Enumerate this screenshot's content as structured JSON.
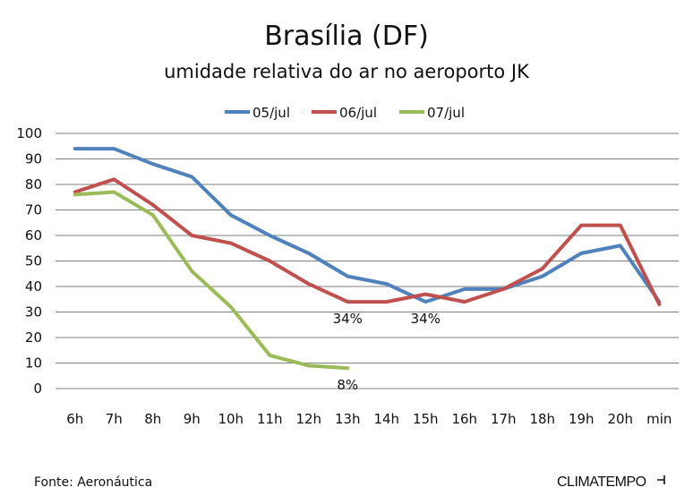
{
  "chart_data": {
    "type": "line",
    "title": "Brasília (DF)",
    "subtitle": "umidade relativa do ar no aeroporto JK",
    "categories": [
      "6h",
      "7h",
      "8h",
      "9h",
      "10h",
      "11h",
      "12h",
      "13h",
      "14h",
      "15h",
      "16h",
      "17h",
      "18h",
      "19h",
      "20h",
      "min"
    ],
    "y_ticks": [
      "0",
      "10",
      "20",
      "30",
      "40",
      "50",
      "60",
      "70",
      "80",
      "90",
      "100"
    ],
    "ylim": [
      0,
      100
    ],
    "grid": true,
    "legend_position": "top",
    "series": [
      {
        "name": "05/jul",
        "color": "#4f81bd",
        "values": [
          94,
          94,
          88,
          83,
          68,
          60,
          53,
          44,
          41,
          34,
          39,
          39,
          44,
          53,
          56,
          34
        ]
      },
      {
        "name": "06/jul",
        "color": "#c0504d",
        "values": [
          77,
          82,
          72,
          60,
          57,
          50,
          41,
          34,
          34,
          37,
          34,
          39,
          47,
          64,
          64,
          33
        ]
      },
      {
        "name": "07/jul",
        "color": "#9bbb59",
        "values": [
          76,
          77,
          68,
          46,
          32,
          13,
          9,
          8,
          null,
          null,
          null,
          null,
          null,
          null,
          null,
          null
        ]
      }
    ],
    "annotations": [
      {
        "text": "34%",
        "series": 1,
        "index": 7
      },
      {
        "text": "34%",
        "series": 0,
        "index": 9
      },
      {
        "text": "8%",
        "series": 2,
        "index": 7
      }
    ]
  },
  "footer": {
    "source": "Fonte: Aeronáutica",
    "brand": "CLIMATEMPO"
  }
}
